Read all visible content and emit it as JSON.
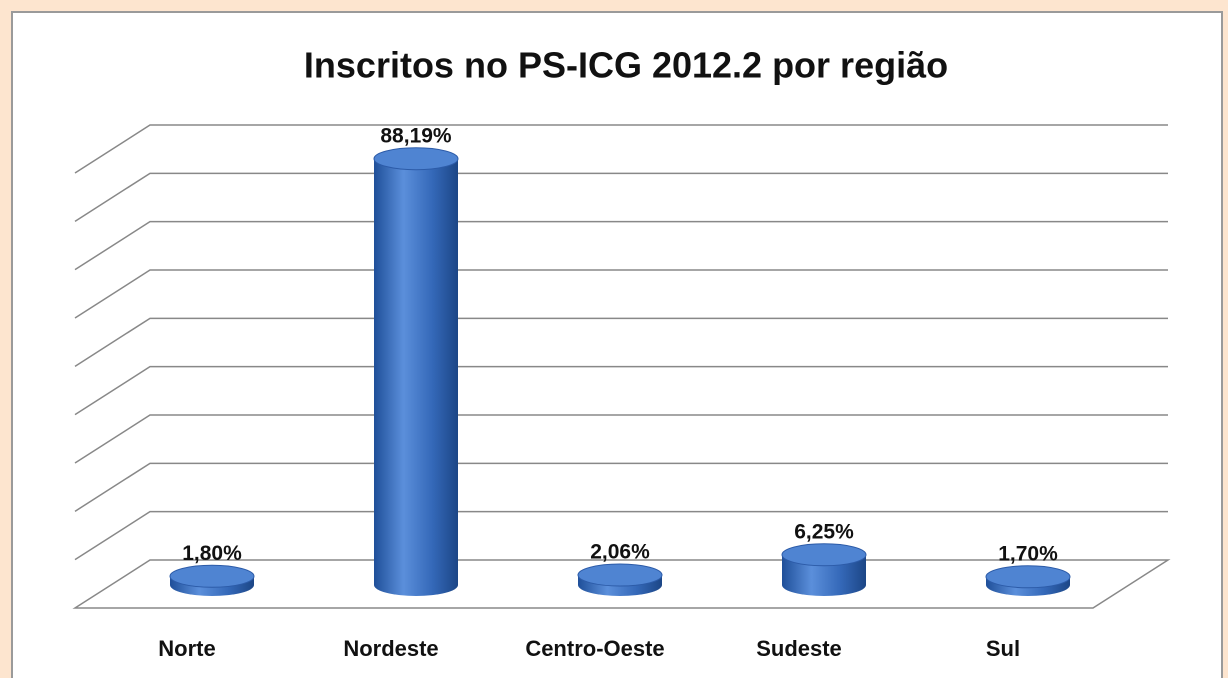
{
  "chart_data": {
    "type": "bar",
    "title": "Inscritos no PS-ICG 2012.2 por região",
    "categories": [
      "Norte",
      "Nordeste",
      "Centro-Oeste",
      "Sudeste",
      "Sul"
    ],
    "values": [
      1.8,
      88.19,
      2.06,
      6.25,
      1.7
    ],
    "value_labels": [
      "1,80%",
      "88,19%",
      "2,06%",
      "6,25%",
      "1,70%"
    ],
    "color": "#3a6fbf",
    "ylim": [
      0,
      90
    ],
    "yticks": [
      0,
      10,
      20,
      30,
      40,
      50,
      60,
      70,
      80,
      90
    ],
    "grid": true
  }
}
